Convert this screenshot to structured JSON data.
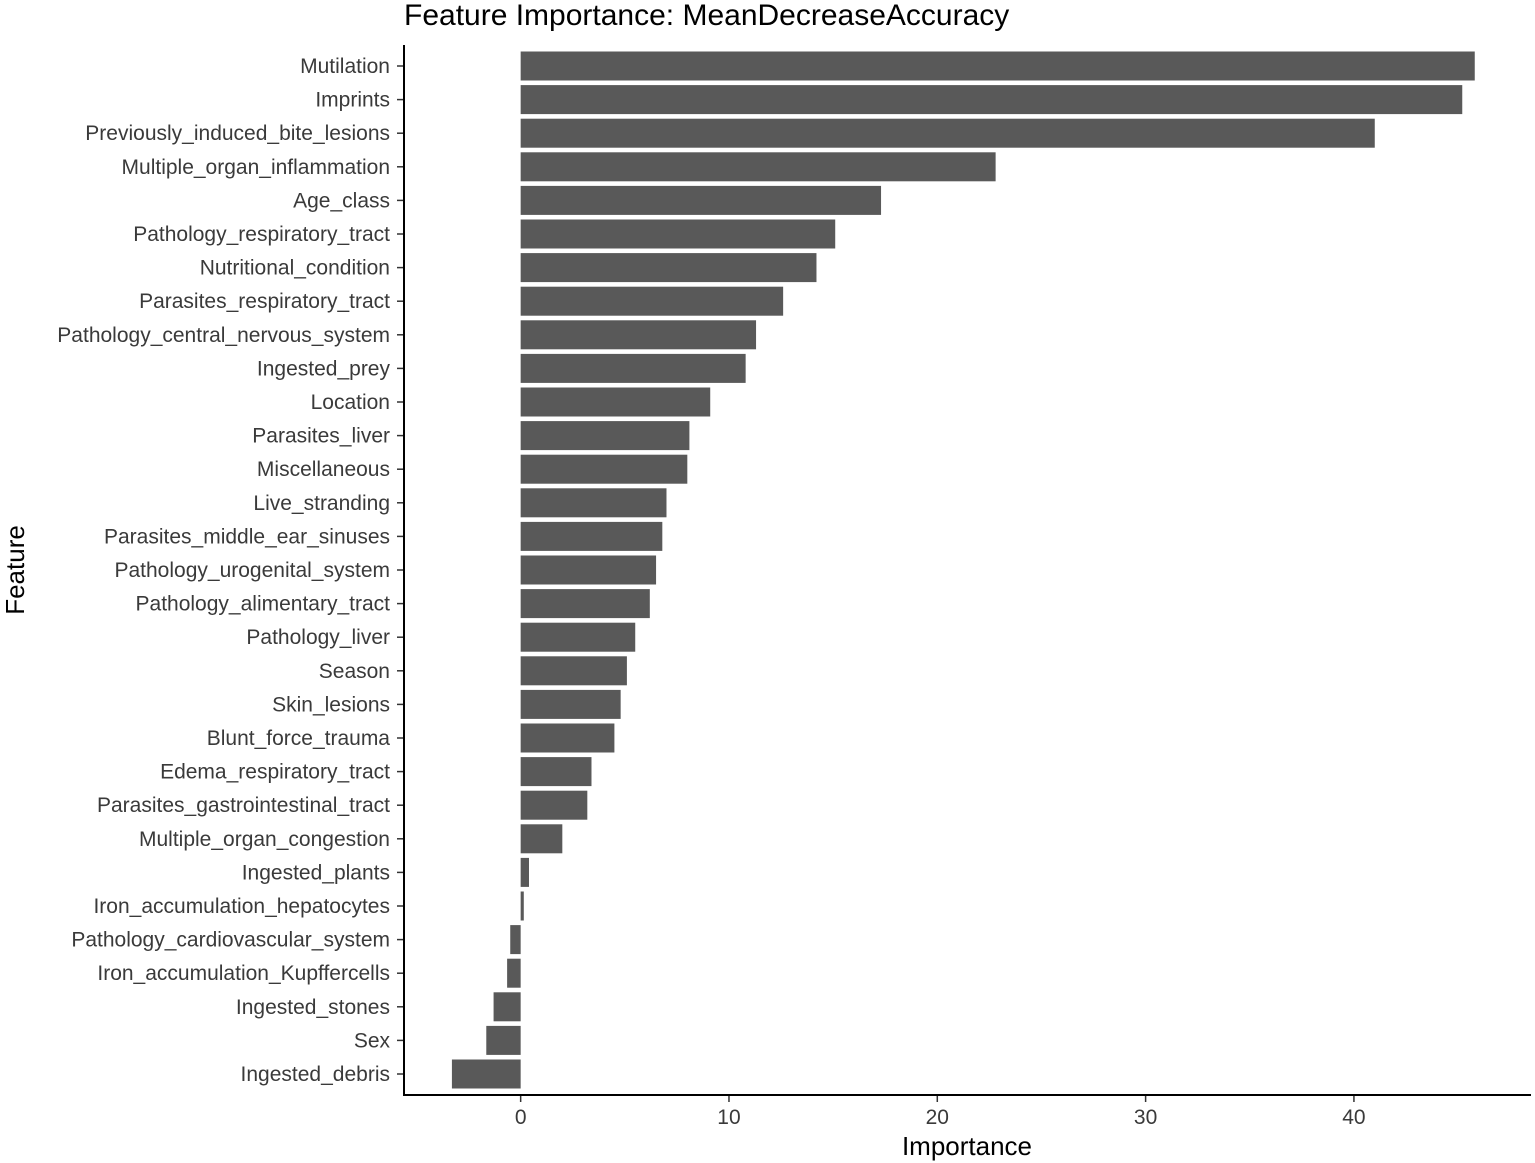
{
  "chart_data": {
    "type": "bar",
    "orientation": "horizontal",
    "title": "Feature Importance: MeanDecreaseAccuracy",
    "xlabel": "Importance",
    "ylabel": "Feature",
    "xlim": [
      -5.6,
      48.5
    ],
    "xticks": [
      0,
      10,
      20,
      30,
      40
    ],
    "grid": false,
    "bar_color": "#595959",
    "categories": [
      "Mutilation",
      "Imprints",
      "Previously_induced_bite_lesions",
      "Multiple_organ_inflammation",
      "Age_class",
      "Pathology_respiratory_tract",
      "Nutritional_condition",
      "Parasites_respiratory_tract",
      "Pathology_central_nervous_system",
      "Ingested_prey",
      "Location",
      "Parasites_liver",
      "Miscellaneous",
      "Live_stranding",
      "Parasites_middle_ear_sinuses",
      "Pathology_urogenital_system",
      "Pathology_alimentary_tract",
      "Pathology_liver",
      "Season",
      "Skin_lesions",
      "Blunt_force_trauma",
      "Edema_respiratory_tract",
      "Parasites_gastrointestinal_tract",
      "Multiple_organ_congestion",
      "Ingested_plants",
      "Iron_accumulation_hepatocytes",
      "Pathology_cardiovascular_system",
      "Iron_accumulation_Kupffercells",
      "Ingested_stones",
      "Sex",
      "Ingested_debris"
    ],
    "values": [
      45.8,
      45.2,
      41.0,
      22.8,
      17.3,
      15.1,
      14.2,
      12.6,
      11.3,
      10.8,
      9.1,
      8.1,
      8.0,
      7.0,
      6.8,
      6.5,
      6.2,
      5.5,
      5.1,
      4.8,
      4.5,
      3.4,
      3.2,
      2.0,
      0.4,
      0.15,
      -0.5,
      -0.65,
      -1.3,
      -1.65,
      -3.3
    ]
  }
}
